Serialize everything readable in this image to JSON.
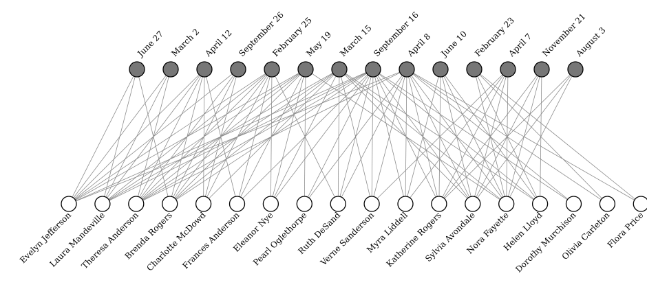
{
  "events": [
    "June 27",
    "March 2",
    "April 12",
    "September 26",
    "February 25",
    "May 19",
    "March 15",
    "September 16",
    "April 8",
    "June 10",
    "February 23",
    "April 7",
    "November 21",
    "August 3"
  ],
  "people": [
    "Evelyn Jefferson",
    "Laura Mandeville",
    "Theresa Anderson",
    "Brenda Rogers",
    "Charlotte McDowd",
    "Frances Anderson",
    "Eleanor Nye",
    "Pearl Oglethorpe",
    "Ruth DeSand",
    "Verne Sanderson",
    "Myra Liddell",
    "Katherine Rogers",
    "Sylvia Avondale",
    "Nora Fayette",
    "Helen Lloyd",
    "Dorothy Murchison",
    "Olivia Carleton",
    "Flora Price"
  ],
  "attendance": [
    [
      0,
      1,
      2,
      3,
      4,
      5,
      7,
      8
    ],
    [
      0,
      1,
      2,
      4,
      5,
      6,
      7
    ],
    [
      1,
      2,
      3,
      4,
      5,
      6,
      7,
      8
    ],
    [
      0,
      2,
      3,
      4,
      5,
      6,
      7
    ],
    [
      2,
      3,
      4,
      6
    ],
    [
      2,
      4,
      5,
      7
    ],
    [
      4,
      5,
      6,
      7
    ],
    [
      5,
      7,
      8
    ],
    [
      4,
      6,
      7,
      8
    ],
    [
      6,
      7,
      8,
      11
    ],
    [
      7,
      8,
      9,
      11
    ],
    [
      7,
      8,
      9,
      11,
      12,
      13
    ],
    [
      6,
      7,
      8,
      9,
      11,
      12,
      13
    ],
    [
      5,
      6,
      8,
      9,
      10,
      11,
      12,
      13
    ],
    [
      6,
      7,
      9,
      10,
      12
    ],
    [
      7,
      8
    ],
    [
      8,
      10
    ],
    [
      8,
      10
    ]
  ]
}
